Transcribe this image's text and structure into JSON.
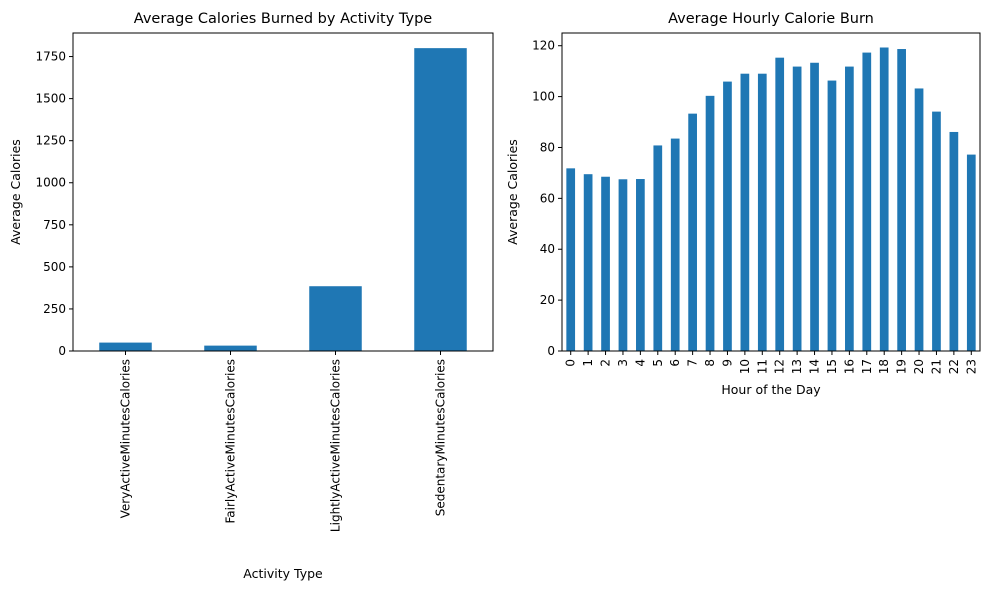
{
  "chart_data": [
    {
      "type": "bar",
      "title": "Average Calories Burned by Activity Type",
      "xlabel": "Activity Type",
      "ylabel": "Average Calories",
      "categories": [
        "VeryActiveMinutesCalories",
        "FairlyActiveMinutesCalories",
        "LightlyActiveMinutesCalories",
        "SedentaryMinutesCalories"
      ],
      "values": [
        50,
        32,
        385,
        1800
      ],
      "ylim": [
        0,
        1890
      ],
      "yticks": [
        0,
        250,
        500,
        750,
        1000,
        1250,
        1500,
        1750
      ],
      "color": "#1f77b4",
      "grid": false,
      "xtick_rotation": "vertical"
    },
    {
      "type": "bar",
      "title": "Average Hourly Calorie Burn",
      "xlabel": "Hour of the Day",
      "ylabel": "Average Calories",
      "categories": [
        "0",
        "1",
        "2",
        "3",
        "4",
        "5",
        "6",
        "7",
        "8",
        "9",
        "10",
        "11",
        "12",
        "13",
        "14",
        "15",
        "16",
        "17",
        "18",
        "19",
        "20",
        "21",
        "22",
        "23"
      ],
      "values": [
        71.8,
        69.5,
        68.5,
        67.5,
        67.6,
        80.8,
        83.5,
        93.3,
        100.3,
        105.9,
        109.0,
        109.0,
        115.3,
        111.8,
        113.3,
        106.3,
        111.8,
        117.3,
        119.3,
        118.7,
        103.2,
        94.1,
        86.1,
        77.2
      ],
      "ylim": [
        0,
        125
      ],
      "yticks": [
        0,
        20,
        40,
        60,
        80,
        100,
        120
      ],
      "color": "#1f77b4",
      "grid": false,
      "xtick_rotation": "vertical"
    }
  ]
}
